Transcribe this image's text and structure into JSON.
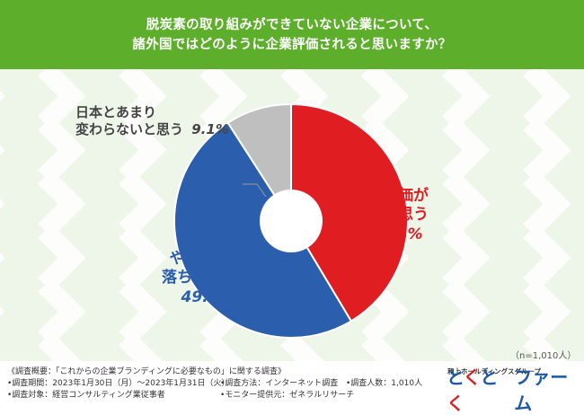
{
  "header": {
    "line1": "脱炭素の取り組みができていない企業について、",
    "line2": "諸外国ではどのように企業評価されると思いますか？",
    "bg_color": "#5cae2b"
  },
  "chart_data": {
    "type": "pie",
    "donut": true,
    "slices": [
      {
        "label_line1": "大きく評価が",
        "label_line2": "落ちると思う",
        "value": 41.4,
        "pct_text": "41.4%",
        "color": "#e01e22",
        "label_color": "#e01e22"
      },
      {
        "label_line1": "やや評価が",
        "label_line2": "落ちると思う",
        "value": 49.5,
        "pct_text": "49.5%",
        "color": "#2b5fad",
        "label_color": "#2b5fad"
      },
      {
        "label_line1": "日本とあまり",
        "label_line2": "変わらないと思う",
        "value": 9.1,
        "pct_text": "9.1%",
        "color": "#bfbfbf",
        "label_color": "#444444"
      }
    ],
    "sample_size": "（n=1,010人）"
  },
  "footer": {
    "line1": "《調査概要：「これからの企業ブランディングに必要なもの」に関する調査》",
    "col1": [
      "•調査期間：2023年1月30日（月）〜2023年1月31日（火）",
      "•調査対象：経営コンサルティング業従事者"
    ],
    "col2": [
      "•調査方法：インターネット調査",
      "•モニター提供元：ゼネラルリサーチ"
    ],
    "col3": [
      "•調査人数：1,010人"
    ]
  },
  "logo": {
    "company": "和上ホールディングスグループ",
    "brand": "とくとく",
    "brand_suffix": "ファーム",
    "colors": [
      "#1d58a8",
      "#e01e22",
      "#1d58a8",
      "#e01e22"
    ]
  }
}
